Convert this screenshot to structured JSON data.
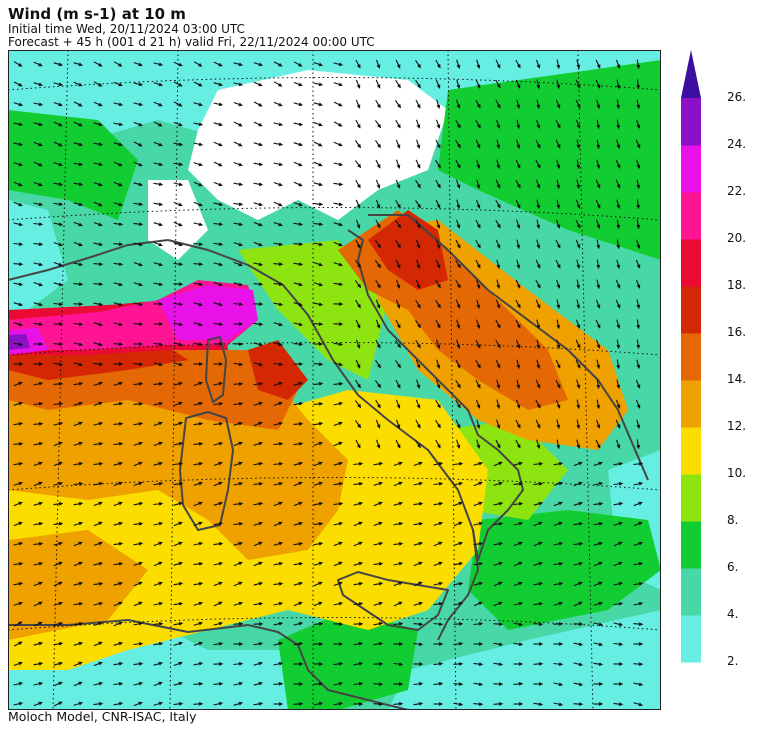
{
  "header": {
    "title": "Wind (m s-1) at 10 m",
    "initial_time": "Initial time  Wed, 20/11/2024  03:00 UTC",
    "forecast": "Forecast  +  45 h  (001 d 21 h)  valid Fri, 22/11/2024 00:00 UTC"
  },
  "footer": {
    "credit": "Moloch Model, CNR-ISAC, Italy"
  },
  "colorbar": {
    "classes": [
      {
        "from": 2,
        "to": 4,
        "color": "#66eee3"
      },
      {
        "from": 4,
        "to": 6,
        "color": "#48d8a8"
      },
      {
        "from": 6,
        "to": 8,
        "color": "#12cd32"
      },
      {
        "from": 8,
        "to": 10,
        "color": "#8ee411"
      },
      {
        "from": 10,
        "to": 12,
        "color": "#fbdd00"
      },
      {
        "from": 12,
        "to": 14,
        "color": "#efa100"
      },
      {
        "from": 14,
        "to": 16,
        "color": "#e46905"
      },
      {
        "from": 16,
        "to": 18,
        "color": "#d42805"
      },
      {
        "from": 18,
        "to": 20,
        "color": "#ea0a34"
      },
      {
        "from": 20,
        "to": 22,
        "color": "#ff1493"
      },
      {
        "from": 22,
        "to": 24,
        "color": "#e812e8"
      },
      {
        "from": 24,
        "to": 26,
        "color": "#8c10c6"
      }
    ],
    "extend_color": "#3c0fa0",
    "labels": [
      "2.",
      "4.",
      "6.",
      "8.",
      "10.",
      "12.",
      "14.",
      "16.",
      "18.",
      "20.",
      "22.",
      "24.",
      "26."
    ]
  },
  "map": {
    "field": "10 m wind speed with direction arrows",
    "region": "Italy and surrounding seas",
    "coast_color": "#454545",
    "land_calm_color": "#ffffff"
  }
}
